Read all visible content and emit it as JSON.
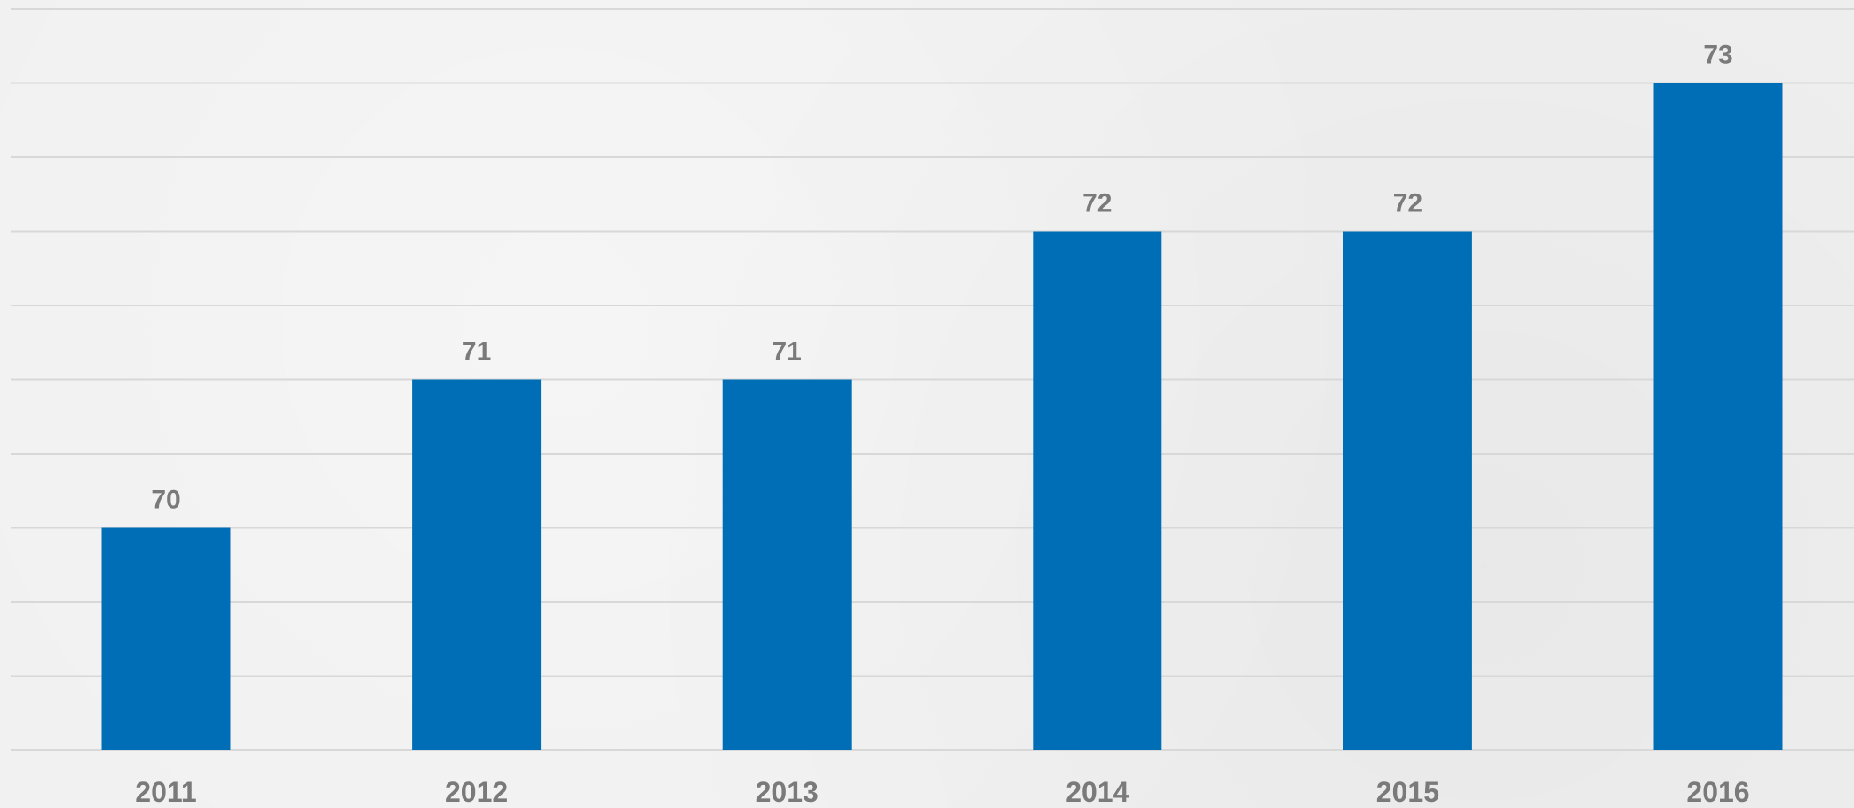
{
  "chart_data": {
    "type": "bar",
    "categories": [
      "2011",
      "2012",
      "2013",
      "2014",
      "2015",
      "2016"
    ],
    "values": [
      70,
      71,
      71,
      72,
      72,
      73
    ],
    "data_labels": [
      "70",
      "71",
      "71",
      "72",
      "72",
      "73"
    ],
    "title": "",
    "xlabel": "",
    "ylabel": "",
    "ylim": [
      68.5,
      73.5
    ],
    "grid": true,
    "y_axis_visible": false,
    "legend": "none",
    "colors": {
      "bar": "#006eb6",
      "label": "#7a7a7a",
      "grid": "#d8d8d8"
    }
  }
}
